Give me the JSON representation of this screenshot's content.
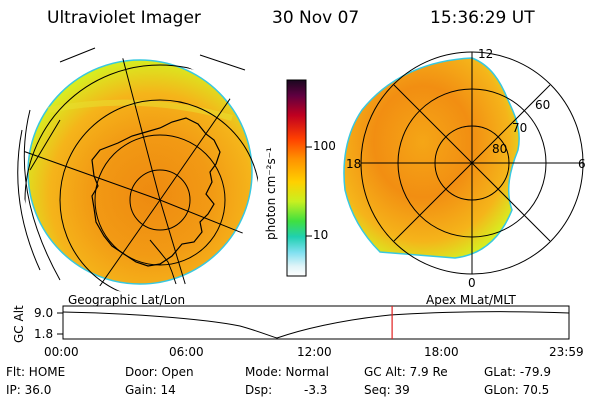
{
  "header": {
    "instrument": "Ultraviolet Imager",
    "date": "30 Nov 07",
    "time": "15:36:29 UT"
  },
  "colorbar": {
    "unit_label": "photon cm⁻²s⁻¹",
    "ticks": [
      "100",
      "10"
    ]
  },
  "polar_plot": {
    "mlt_labels": [
      "12",
      "18",
      "6",
      "0"
    ],
    "lat_labels": [
      "60",
      "70",
      "80"
    ]
  },
  "left_plot": {
    "caption": "Geographic Lat/Lon"
  },
  "right_plot": {
    "caption": "Apex MLat/MLT"
  },
  "altitude_strip": {
    "ylabel": "GC Alt",
    "y_ticks": [
      "9.0",
      "1.8"
    ],
    "x_ticks": [
      "00:00",
      "06:00",
      "12:00",
      "18:00",
      "23:59"
    ],
    "current_time_marker_hours": 15.61
  },
  "status": {
    "flt": "Flt: HOME",
    "ip": "IP: 36.0",
    "door": "Door: Open",
    "gain": "Gain: 14",
    "mode": "Mode: Normal",
    "dsp_label": "Dsp:",
    "dsp_value": "-3.3",
    "gc_alt": "GC Alt: 7.9 Re",
    "seq": "Seq: 39",
    "glat": "GLat: -79.9",
    "glon": "GLon:  70.5"
  },
  "colors": {
    "aurora_outer": "#d8ec20",
    "aurora_mid": "#f5b41a",
    "aurora_inner": "#ee8a10",
    "limb": "#38c8e0",
    "marker": "#e02020"
  }
}
